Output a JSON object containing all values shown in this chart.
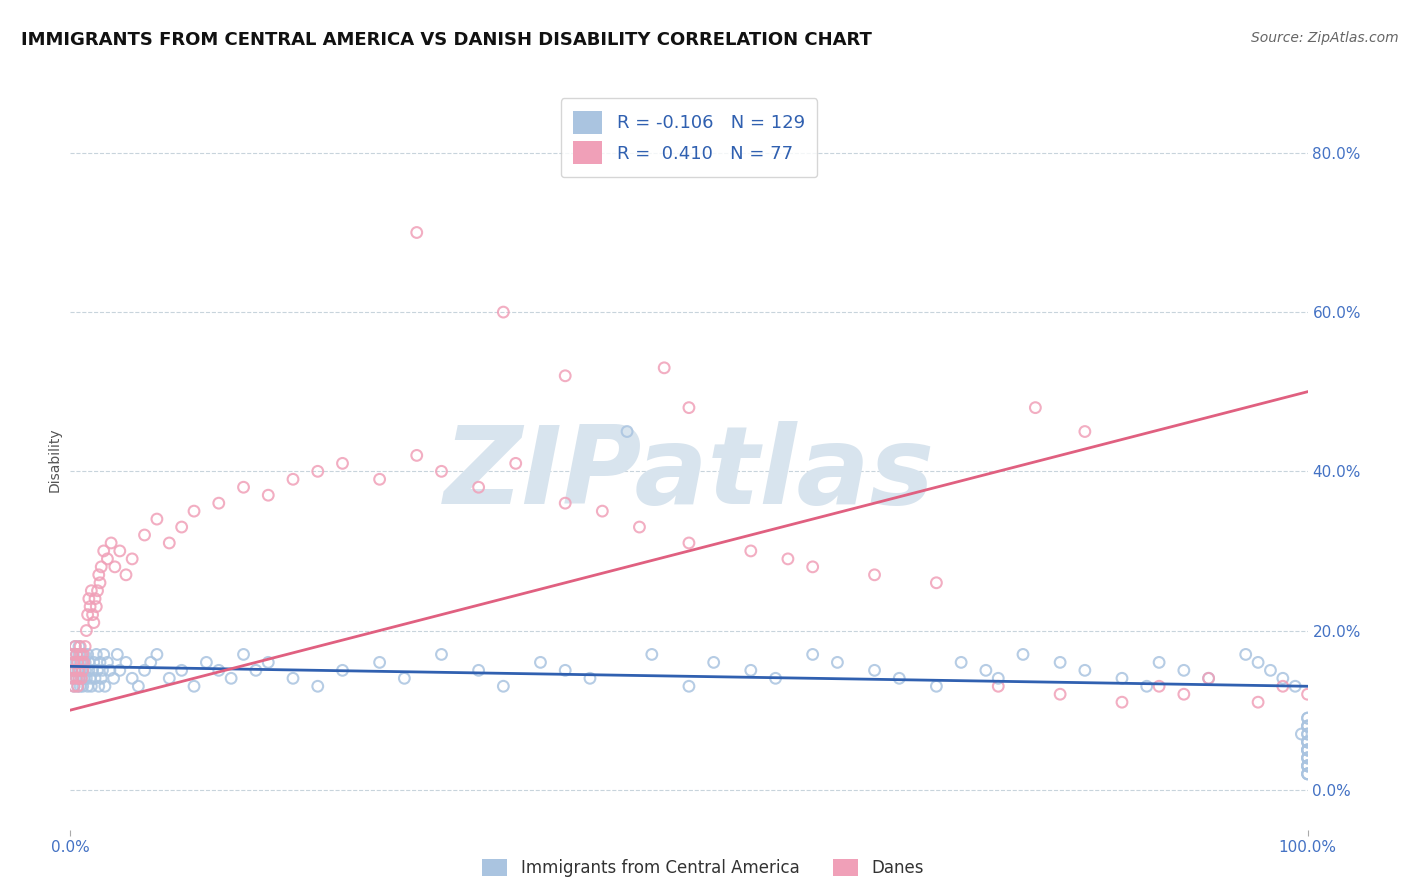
{
  "title": "IMMIGRANTS FROM CENTRAL AMERICA VS DANISH DISABILITY CORRELATION CHART",
  "source": "Source: ZipAtlas.com",
  "ylabel": "Disability",
  "series": [
    {
      "name": "Immigrants from Central America",
      "scatter_color": "#aac4e0",
      "line_color": "#3060b0",
      "R": -0.106,
      "N": 129,
      "x": [
        0.1,
        0.2,
        0.2,
        0.3,
        0.3,
        0.4,
        0.4,
        0.5,
        0.5,
        0.5,
        0.6,
        0.6,
        0.6,
        0.7,
        0.7,
        0.7,
        0.8,
        0.8,
        0.8,
        0.9,
        0.9,
        1.0,
        1.0,
        1.0,
        1.1,
        1.1,
        1.2,
        1.2,
        1.3,
        1.4,
        1.4,
        1.5,
        1.5,
        1.6,
        1.7,
        1.8,
        1.9,
        2.0,
        2.1,
        2.2,
        2.3,
        2.4,
        2.5,
        2.6,
        2.7,
        2.8,
        3.0,
        3.2,
        3.5,
        3.8,
        4.0,
        4.5,
        5.0,
        5.5,
        6.0,
        6.5,
        7.0,
        8.0,
        9.0,
        10.0,
        11.0,
        12.0,
        13.0,
        14.0,
        15.0,
        16.0,
        18.0,
        20.0,
        22.0,
        25.0,
        27.0,
        30.0,
        33.0,
        35.0,
        38.0,
        40.0,
        42.0,
        45.0,
        47.0,
        50.0,
        52.0,
        55.0,
        57.0,
        60.0,
        62.0,
        65.0,
        67.0,
        70.0,
        72.0,
        74.0,
        75.0,
        77.0,
        80.0,
        82.0,
        85.0,
        87.0,
        88.0,
        90.0,
        92.0,
        95.0,
        96.0,
        97.0,
        98.0,
        99.0,
        99.5,
        100.0,
        100.0,
        100.0,
        100.0,
        100.0,
        100.0,
        100.0,
        100.0,
        100.0,
        100.0,
        100.0,
        100.0,
        100.0,
        100.0,
        100.0,
        100.0,
        100.0,
        100.0,
        100.0,
        100.0,
        100.0,
        100.0,
        100.0,
        100.0
      ],
      "y": [
        15.0,
        14.0,
        17.0,
        16.0,
        13.0,
        15.0,
        18.0,
        14.0,
        16.0,
        17.0,
        13.0,
        15.0,
        16.0,
        14.0,
        17.0,
        18.0,
        13.0,
        16.0,
        15.0,
        14.0,
        17.0,
        15.0,
        16.0,
        13.0,
        14.0,
        17.0,
        15.0,
        16.0,
        14.0,
        13.0,
        17.0,
        15.0,
        16.0,
        14.0,
        13.0,
        15.0,
        16.0,
        14.0,
        17.0,
        15.0,
        13.0,
        16.0,
        14.0,
        15.0,
        17.0,
        13.0,
        16.0,
        15.0,
        14.0,
        17.0,
        15.0,
        16.0,
        14.0,
        13.0,
        15.0,
        16.0,
        17.0,
        14.0,
        15.0,
        13.0,
        16.0,
        15.0,
        14.0,
        17.0,
        15.0,
        16.0,
        14.0,
        13.0,
        15.0,
        16.0,
        14.0,
        17.0,
        15.0,
        13.0,
        16.0,
        15.0,
        14.0,
        45.0,
        17.0,
        13.0,
        16.0,
        15.0,
        14.0,
        17.0,
        16.0,
        15.0,
        14.0,
        13.0,
        16.0,
        15.0,
        14.0,
        17.0,
        16.0,
        15.0,
        14.0,
        13.0,
        16.0,
        15.0,
        14.0,
        17.0,
        16.0,
        15.0,
        14.0,
        13.0,
        7.0,
        5.0,
        3.0,
        8.0,
        6.0,
        2.0,
        4.0,
        9.0,
        5.0,
        7.0,
        3.0,
        6.0,
        8.0,
        4.0,
        2.0,
        5.0,
        7.0,
        3.0,
        9.0,
        4.0,
        6.0,
        2.0,
        8.0,
        5.0,
        3.0
      ]
    },
    {
      "name": "Danes",
      "scatter_color": "#f0a0b8",
      "line_color": "#e06080",
      "R": 0.41,
      "N": 77,
      "x": [
        0.1,
        0.2,
        0.2,
        0.3,
        0.3,
        0.4,
        0.4,
        0.5,
        0.5,
        0.6,
        0.6,
        0.7,
        0.7,
        0.8,
        0.8,
        0.9,
        0.9,
        1.0,
        1.0,
        1.1,
        1.2,
        1.3,
        1.4,
        1.5,
        1.6,
        1.7,
        1.8,
        1.9,
        2.0,
        2.1,
        2.2,
        2.3,
        2.4,
        2.5,
        2.7,
        3.0,
        3.3,
        3.6,
        4.0,
        4.5,
        5.0,
        6.0,
        7.0,
        8.0,
        9.0,
        10.0,
        12.0,
        14.0,
        16.0,
        18.0,
        20.0,
        22.0,
        25.0,
        28.0,
        30.0,
        33.0,
        36.0,
        40.0,
        43.0,
        46.0,
        50.0,
        55.0,
        58.0,
        60.0,
        65.0,
        70.0,
        75.0,
        80.0,
        85.0,
        88.0,
        90.0,
        92.0,
        96.0,
        98.0,
        100.0,
        82.0,
        78.0
      ],
      "y": [
        15.0,
        14.0,
        17.0,
        16.0,
        13.0,
        15.0,
        18.0,
        14.0,
        17.0,
        13.0,
        16.0,
        15.0,
        14.0,
        17.0,
        18.0,
        16.0,
        14.0,
        15.0,
        17.0,
        16.0,
        18.0,
        20.0,
        22.0,
        24.0,
        23.0,
        25.0,
        22.0,
        21.0,
        24.0,
        23.0,
        25.0,
        27.0,
        26.0,
        28.0,
        30.0,
        29.0,
        31.0,
        28.0,
        30.0,
        27.0,
        29.0,
        32.0,
        34.0,
        31.0,
        33.0,
        35.0,
        36.0,
        38.0,
        37.0,
        39.0,
        40.0,
        41.0,
        39.0,
        42.0,
        40.0,
        38.0,
        41.0,
        36.0,
        35.0,
        33.0,
        31.0,
        30.0,
        29.0,
        28.0,
        27.0,
        26.0,
        13.0,
        12.0,
        11.0,
        13.0,
        12.0,
        14.0,
        11.0,
        13.0,
        12.0,
        45.0,
        48.0
      ]
    }
  ],
  "pink_outliers_x": [
    28.0,
    35.0,
    40.0,
    48.0,
    50.0
  ],
  "pink_outliers_y": [
    70.0,
    60.0,
    52.0,
    53.0,
    48.0
  ],
  "xlim": [
    0.0,
    100.0
  ],
  "ylim": [
    -5.0,
    88.0
  ],
  "yticks": [
    0.0,
    20.0,
    40.0,
    60.0,
    80.0
  ],
  "ytick_labels": [
    "0.0%",
    "20.0%",
    "40.0%",
    "60.0%",
    "80.0%"
  ],
  "xticks": [
    0.0,
    100.0
  ],
  "xtick_labels": [
    "0.0%",
    "100.0%"
  ],
  "grid_color": "#c8d4dc",
  "background_color": "#ffffff",
  "watermark": "ZIPatlas",
  "watermark_color": "#d8e4ee",
  "title_color": "#111111",
  "title_fontsize": 13,
  "tick_color": "#4472c4",
  "source_color": "#666666",
  "legend_text_color": "#3060b0",
  "marker_size": 60,
  "trend_blue_x0": 0.0,
  "trend_blue_y0": 15.5,
  "trend_blue_x1": 100.0,
  "trend_blue_y1": 13.0,
  "trend_pink_x0": 0.0,
  "trend_pink_y0": 10.0,
  "trend_pink_x1": 100.0,
  "trend_pink_y1": 50.0
}
